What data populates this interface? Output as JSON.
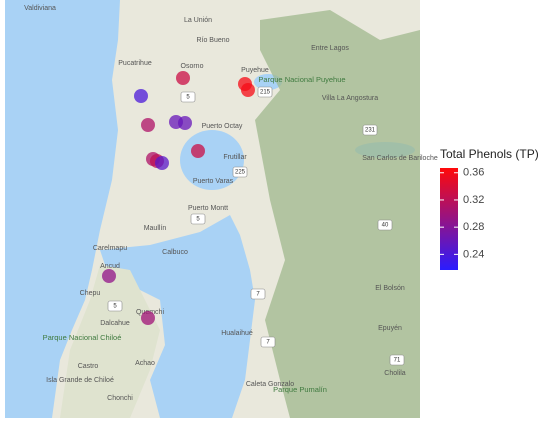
{
  "map": {
    "labels": [
      "Valdiviana",
      "La Unión",
      "Río Bueno",
      "Osorno",
      "Pucatrihue",
      "Puyehue",
      "Parque Nacional Puyehue",
      "Entre Lagos",
      "Villa La Angostura",
      "Puerto Octay",
      "Frutillar",
      "Puerto Varas",
      "Puerto Montt",
      "Maullín",
      "Carelmapu",
      "Calbuco",
      "Ancud",
      "Chepu",
      "Quemchi",
      "Parque Nacional Chiloé",
      "Dalcahue",
      "Castro",
      "Achao",
      "Isla Grande de Chiloé",
      "Chonchi",
      "Hualaihué",
      "Caleta Gonzalo",
      "Parque Pumalín",
      "San Carlos de Bariloche",
      "El Bolsón",
      "Epuyén",
      "Cholila"
    ],
    "shields": [
      "5",
      "215",
      "225",
      "231",
      "5",
      "5",
      "7",
      "7",
      "40",
      "71"
    ]
  },
  "chart_data": {
    "type": "scatter",
    "legend_title": "Total Phenols (TP)",
    "values": [
      0.33,
      0.36,
      0.36,
      0.24,
      0.26,
      0.26,
      0.31,
      0.33,
      0.31,
      0.32,
      0.25,
      0.29,
      0.3
    ],
    "clim": [
      0.217,
      0.367
    ],
    "cticks": [
      0.24,
      0.28,
      0.32,
      0.36
    ],
    "color_low": "#2a1cff",
    "color_high": "#ff0a0a"
  }
}
